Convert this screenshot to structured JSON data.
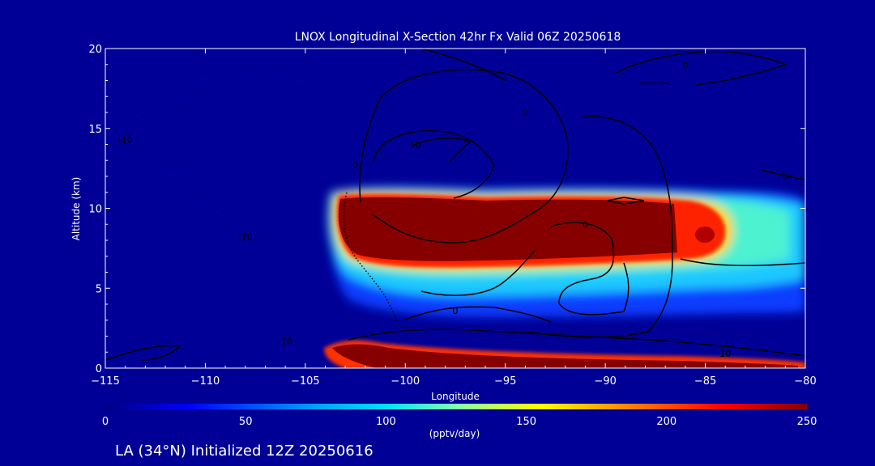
{
  "colors": {
    "background": "#000096",
    "axis": "#ffffff",
    "contour": "#000000",
    "colormap": [
      "#000080",
      "#0000ff",
      "#00bfff",
      "#7fffd4",
      "#ffff00",
      "#ff8c00",
      "#ff0000",
      "#8b0000"
    ]
  },
  "chart_data": {
    "type": "heatmap",
    "title": "LNOX Longitudinal X-Section 42hr  Fx Valid 06Z 20250618",
    "xlabel": "Longitude",
    "ylabel": "Altitude (km)",
    "xlim": [
      -115,
      -80
    ],
    "ylim": [
      0,
      20
    ],
    "x_ticks": [
      -115,
      -110,
      -105,
      -100,
      -95,
      -90,
      -85,
      -80
    ],
    "y_ticks": [
      0,
      5,
      10,
      15,
      20
    ],
    "field_units": "(pptv/day)",
    "colorbar": {
      "range": [
        0,
        250
      ],
      "ticks": [
        0,
        50,
        100,
        150,
        200,
        250
      ],
      "label": "(pptv/day)"
    },
    "field_features": [
      {
        "name": "upper band",
        "lon": [
          -103.2,
          -86.3
        ],
        "alt": [
          6.5,
          11.2
        ],
        "value": 250
      },
      {
        "name": "surface band",
        "lon": [
          -103.5,
          -81
        ],
        "alt": [
          0.2,
          1.4
        ],
        "value": 250
      },
      {
        "name": "eastern max",
        "lon": [
          -85,
          -84.8
        ],
        "alt": [
          8.3,
          8.3
        ],
        "value": 250
      }
    ],
    "contour_labels": [
      {
        "text": "0",
        "lon": -86,
        "alt": 19
      },
      {
        "text": "0",
        "lon": -94,
        "alt": 16
      },
      {
        "text": "10",
        "lon": -99.5,
        "alt": 14
      },
      {
        "text": "0",
        "lon": -102.5,
        "alt": 12.7
      },
      {
        "text": "0",
        "lon": -81,
        "alt": 12
      },
      {
        "text": "0",
        "lon": -91,
        "alt": 9
      },
      {
        "text": "0",
        "lon": -97.5,
        "alt": 3.6
      },
      {
        "text": "-10",
        "lon": -114,
        "alt": 14.3
      },
      {
        "text": "-10",
        "lon": -108,
        "alt": 8.2
      },
      {
        "text": "-10",
        "lon": -106,
        "alt": 1.7
      },
      {
        "text": "10",
        "lon": -84,
        "alt": 0.9
      }
    ]
  },
  "footer": {
    "location_text": "LA (34°N) Initialized 12Z 20250616"
  }
}
